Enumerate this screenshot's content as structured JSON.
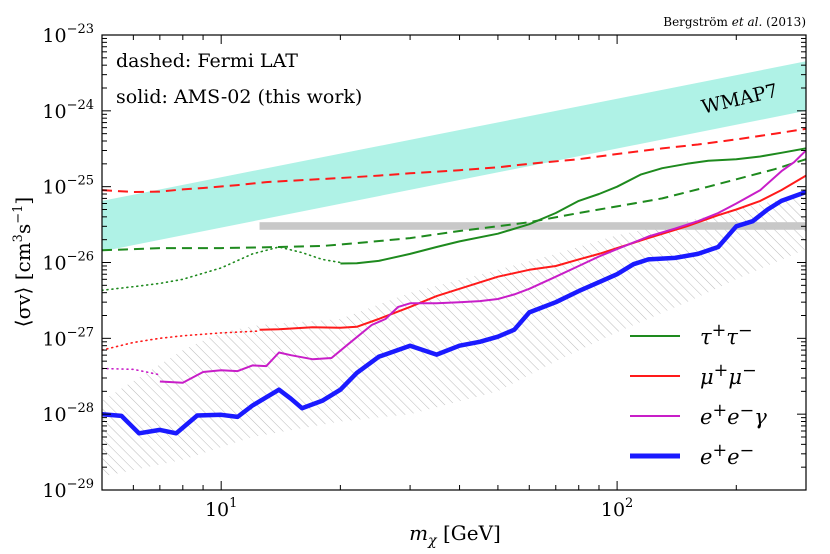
{
  "chart_data": {
    "type": "line",
    "title": "",
    "credit": {
      "prefix": "Bergström ",
      "italic": "et al.",
      "suffix": " (2013)"
    },
    "xlabel": {
      "main": "m",
      "sub": "χ",
      "unit": " [GeV]"
    },
    "ylabel": {
      "main": "⟨σv⟩ [cm",
      "sup1": "3",
      "mid": "s",
      "sup2": "−1",
      "end": "]"
    },
    "x_scale": "log",
    "y_scale": "log",
    "xlim": [
      5,
      300
    ],
    "ylim": [
      1e-29,
      1e-23
    ],
    "x_ticks": [
      {
        "value": 10,
        "base": "10",
        "exp": "1"
      },
      {
        "value": 100,
        "base": "10",
        "exp": "2"
      }
    ],
    "y_ticks": [
      {
        "value": 1e-29,
        "base": "10",
        "exp": "−29"
      },
      {
        "value": 1e-28,
        "base": "10",
        "exp": "−28"
      },
      {
        "value": 1e-27,
        "base": "10",
        "exp": "−27"
      },
      {
        "value": 1e-26,
        "base": "10",
        "exp": "−26"
      },
      {
        "value": 1e-25,
        "base": "10",
        "exp": "−25"
      },
      {
        "value": 1e-24,
        "base": "10",
        "exp": "−24"
      },
      {
        "value": 1e-23,
        "base": "10",
        "exp": "−23"
      }
    ],
    "notes": [
      "dashed: Fermi LAT",
      "solid: AMS-02 (this work)"
    ],
    "band_label": "WMAP7",
    "wmap7_band": {
      "color": "#aff2e6",
      "lower": [
        [
          5,
          1.4e-26
        ],
        [
          300,
          1e-24
        ]
      ],
      "upper": [
        [
          5,
          6.5e-26
        ],
        [
          300,
          4.5e-24
        ]
      ]
    },
    "thermal_band": {
      "color": "#c8c8c8",
      "y": [
        2.7e-26,
        3.4e-26
      ],
      "x_start": 12.5
    },
    "hatched_region": {
      "color": "#bbbbbb",
      "upper": [
        [
          5,
          1.5e-28
        ],
        [
          8,
          7e-28
        ],
        [
          10,
          1.2e-27
        ],
        [
          12.5,
          1.5e-27
        ],
        [
          20,
          1.8e-27
        ],
        [
          30,
          4e-27
        ],
        [
          50,
          8e-27
        ],
        [
          70,
          1.3e-26
        ],
        [
          100,
          2.3e-26
        ],
        [
          150,
          3.5e-26
        ],
        [
          200,
          5e-26
        ],
        [
          300,
          8e-26
        ]
      ],
      "lower": [
        [
          5,
          1.5e-29
        ],
        [
          8,
          2.5e-29
        ],
        [
          12,
          5e-29
        ],
        [
          20,
          8e-29
        ],
        [
          30,
          1e-28
        ],
        [
          50,
          2e-28
        ],
        [
          70,
          5e-28
        ],
        [
          100,
          1.2e-27
        ],
        [
          150,
          3e-27
        ],
        [
          200,
          6e-27
        ],
        [
          300,
          1.5e-26
        ]
      ]
    },
    "legend": {
      "position": "lower-right",
      "entries": [
        {
          "label_html": "τ<sup>+</sup>τ<sup>−</sup>",
          "color": "#1e8a1e",
          "width": 2
        },
        {
          "label_html": "μ<sup>+</sup>μ<sup>−</sup>",
          "color": "#ff1a1a",
          "width": 2
        },
        {
          "label_html": "<i>e</i><sup>+</sup><i>e</i><sup>−</sup>γ",
          "color": "#c81ec8",
          "width": 2
        },
        {
          "label_html": "<i>e</i><sup>+</sup><i>e</i><sup>−</sup>",
          "color": "#1a1aff",
          "width": 5
        }
      ]
    },
    "series": [
      {
        "name": "Fermi LAT μ+μ−",
        "style": "dashed",
        "color": "#ff1a1a",
        "width": 2,
        "points": [
          [
            5,
            9e-26
          ],
          [
            6,
            8.5e-26
          ],
          [
            7,
            8.6e-26
          ],
          [
            8,
            9.2e-26
          ],
          [
            9,
            9.6e-26
          ],
          [
            11,
            1.05e-25
          ],
          [
            13,
            1.15e-25
          ],
          [
            16,
            1.22e-25
          ],
          [
            20,
            1.3e-25
          ],
          [
            25,
            1.4e-25
          ],
          [
            30,
            1.5e-25
          ],
          [
            40,
            1.65e-25
          ],
          [
            50,
            1.8e-25
          ],
          [
            60,
            2e-25
          ],
          [
            80,
            2.3e-25
          ],
          [
            100,
            2.7e-25
          ],
          [
            130,
            3.2e-25
          ],
          [
            160,
            3.6e-25
          ],
          [
            200,
            4.2e-25
          ],
          [
            250,
            5e-25
          ],
          [
            300,
            5.8e-25
          ]
        ]
      },
      {
        "name": "Fermi LAT τ+τ−",
        "style": "dashed",
        "color": "#1e8a1e",
        "width": 2,
        "points": [
          [
            5,
            1.45e-26
          ],
          [
            7,
            1.55e-26
          ],
          [
            10,
            1.55e-26
          ],
          [
            14,
            1.6e-26
          ],
          [
            18,
            1.65e-26
          ],
          [
            22,
            1.8e-26
          ],
          [
            30,
            2.1e-26
          ],
          [
            40,
            2.6e-26
          ],
          [
            50,
            3e-26
          ],
          [
            60,
            3.4e-26
          ],
          [
            80,
            4.5e-26
          ],
          [
            100,
            5.5e-26
          ],
          [
            130,
            7e-26
          ],
          [
            170,
            1e-25
          ],
          [
            200,
            1.25e-25
          ],
          [
            250,
            1.7e-25
          ],
          [
            300,
            2.3e-25
          ]
        ]
      },
      {
        "name": "τ+τ− dotted (low mass)",
        "style": "dotted",
        "color": "#1e8a1e",
        "width": 1.6,
        "points": [
          [
            5,
            4.3e-27
          ],
          [
            6,
            4.8e-27
          ],
          [
            7,
            5.3e-27
          ],
          [
            8,
            6e-27
          ],
          [
            10,
            8.5e-27
          ],
          [
            12,
            1.3e-26
          ],
          [
            14,
            1.6e-26
          ],
          [
            16,
            1.35e-26
          ],
          [
            18,
            1.1e-26
          ],
          [
            20,
            1e-26
          ]
        ]
      },
      {
        "name": "AMS-02 τ+τ−",
        "style": "solid",
        "color": "#1e8a1e",
        "width": 2,
        "points": [
          [
            20,
            9.7e-27
          ],
          [
            22,
            9.8e-27
          ],
          [
            25,
            1.05e-26
          ],
          [
            30,
            1.3e-26
          ],
          [
            35,
            1.6e-26
          ],
          [
            40,
            1.9e-26
          ],
          [
            50,
            2.4e-26
          ],
          [
            60,
            3.2e-26
          ],
          [
            70,
            4.5e-26
          ],
          [
            80,
            6.5e-26
          ],
          [
            90,
            8e-26
          ],
          [
            100,
            1e-25
          ],
          [
            115,
            1.45e-25
          ],
          [
            130,
            1.75e-25
          ],
          [
            150,
            2e-25
          ],
          [
            170,
            2.2e-25
          ],
          [
            200,
            2.3e-25
          ],
          [
            230,
            2.5e-25
          ],
          [
            260,
            2.8e-25
          ],
          [
            300,
            3.2e-25
          ]
        ]
      },
      {
        "name": "μ+μ− dotted (low mass)",
        "style": "dotted",
        "color": "#ff1a1a",
        "width": 1.6,
        "points": [
          [
            5,
            7e-28
          ],
          [
            6,
            8.8e-28
          ],
          [
            7,
            1e-27
          ],
          [
            8,
            1.08e-27
          ],
          [
            10,
            1.18e-27
          ],
          [
            12.5,
            1.25e-27
          ]
        ]
      },
      {
        "name": "AMS-02 μ+μ−",
        "style": "solid",
        "color": "#ff1a1a",
        "width": 2,
        "points": [
          [
            12.5,
            1.3e-27
          ],
          [
            14,
            1.32e-27
          ],
          [
            17,
            1.4e-27
          ],
          [
            20,
            1.38e-27
          ],
          [
            22,
            1.42e-27
          ],
          [
            25,
            1.8e-27
          ],
          [
            30,
            2.6e-27
          ],
          [
            35,
            3.6e-27
          ],
          [
            40,
            4.5e-27
          ],
          [
            50,
            6.5e-27
          ],
          [
            60,
            8e-27
          ],
          [
            70,
            9e-27
          ],
          [
            80,
            1.1e-26
          ],
          [
            90,
            1.3e-26
          ],
          [
            100,
            1.55e-26
          ],
          [
            120,
            2.1e-26
          ],
          [
            150,
            3e-26
          ],
          [
            180,
            4.2e-26
          ],
          [
            200,
            5e-26
          ],
          [
            230,
            6.5e-26
          ],
          [
            260,
            9e-26
          ],
          [
            300,
            1.4e-25
          ]
        ]
      },
      {
        "name": "e+e−γ dotted (low mass)",
        "style": "dotted",
        "color": "#c81ec8",
        "width": 1.6,
        "points": [
          [
            5,
            4e-28
          ],
          [
            6,
            3.9e-28
          ],
          [
            7,
            3.3e-28
          ]
        ]
      },
      {
        "name": "AMS-02 e+e−γ",
        "style": "solid",
        "color": "#c81ec8",
        "width": 2,
        "points": [
          [
            7,
            2.7e-28
          ],
          [
            8,
            2.6e-28
          ],
          [
            9,
            3.6e-28
          ],
          [
            10,
            3.8e-28
          ],
          [
            11,
            3.7e-28
          ],
          [
            12,
            4.4e-28
          ],
          [
            13,
            4.3e-28
          ],
          [
            14,
            6.5e-28
          ],
          [
            15,
            6e-28
          ],
          [
            17,
            5.3e-28
          ],
          [
            19,
            5.5e-28
          ],
          [
            21,
            8.5e-28
          ],
          [
            24,
            1.5e-27
          ],
          [
            26,
            1.8e-27
          ],
          [
            28,
            2.6e-27
          ],
          [
            30,
            2.9e-27
          ],
          [
            35,
            2.9e-27
          ],
          [
            40,
            3e-27
          ],
          [
            45,
            3.1e-27
          ],
          [
            50,
            3.3e-27
          ],
          [
            55,
            3.8e-27
          ],
          [
            60,
            4.5e-27
          ],
          [
            70,
            6.5e-27
          ],
          [
            80,
            9e-27
          ],
          [
            90,
            1.2e-26
          ],
          [
            100,
            1.5e-26
          ],
          [
            120,
            2.2e-26
          ],
          [
            140,
            2.8e-26
          ],
          [
            160,
            3.5e-26
          ],
          [
            180,
            4.5e-26
          ],
          [
            200,
            6e-26
          ],
          [
            230,
            9e-26
          ],
          [
            260,
            1.6e-25
          ],
          [
            280,
            2.1e-25
          ],
          [
            300,
            3e-25
          ]
        ]
      },
      {
        "name": "AMS-02 e+e−",
        "style": "solid",
        "color": "#1a1aff",
        "width": 4.5,
        "points": [
          [
            5,
            1e-28
          ],
          [
            5.6,
            9.5e-29
          ],
          [
            6.2,
            5.6e-29
          ],
          [
            7,
            6.2e-29
          ],
          [
            7.7,
            5.6e-29
          ],
          [
            8.7,
            9.6e-29
          ],
          [
            10,
            9.8e-29
          ],
          [
            11,
            9.2e-29
          ],
          [
            12,
            1.3e-28
          ],
          [
            14,
            2.1e-28
          ],
          [
            15,
            1.6e-28
          ],
          [
            16,
            1.2e-28
          ],
          [
            18,
            1.5e-28
          ],
          [
            20,
            2.1e-28
          ],
          [
            22,
            3.5e-28
          ],
          [
            25,
            5.7e-28
          ],
          [
            30,
            8e-28
          ],
          [
            35,
            6.1e-28
          ],
          [
            40,
            8e-28
          ],
          [
            45,
            9e-28
          ],
          [
            50,
            1.05e-27
          ],
          [
            55,
            1.3e-27
          ],
          [
            60,
            2.2e-27
          ],
          [
            70,
            3e-27
          ],
          [
            80,
            4.2e-27
          ],
          [
            90,
            5.5e-27
          ],
          [
            100,
            7e-27
          ],
          [
            110,
            9.5e-27
          ],
          [
            120,
            1.1e-26
          ],
          [
            140,
            1.15e-26
          ],
          [
            160,
            1.3e-26
          ],
          [
            180,
            1.6e-26
          ],
          [
            200,
            3e-26
          ],
          [
            220,
            3.5e-26
          ],
          [
            240,
            5e-26
          ],
          [
            260,
            6.5e-26
          ],
          [
            300,
            8.5e-26
          ]
        ]
      }
    ]
  }
}
